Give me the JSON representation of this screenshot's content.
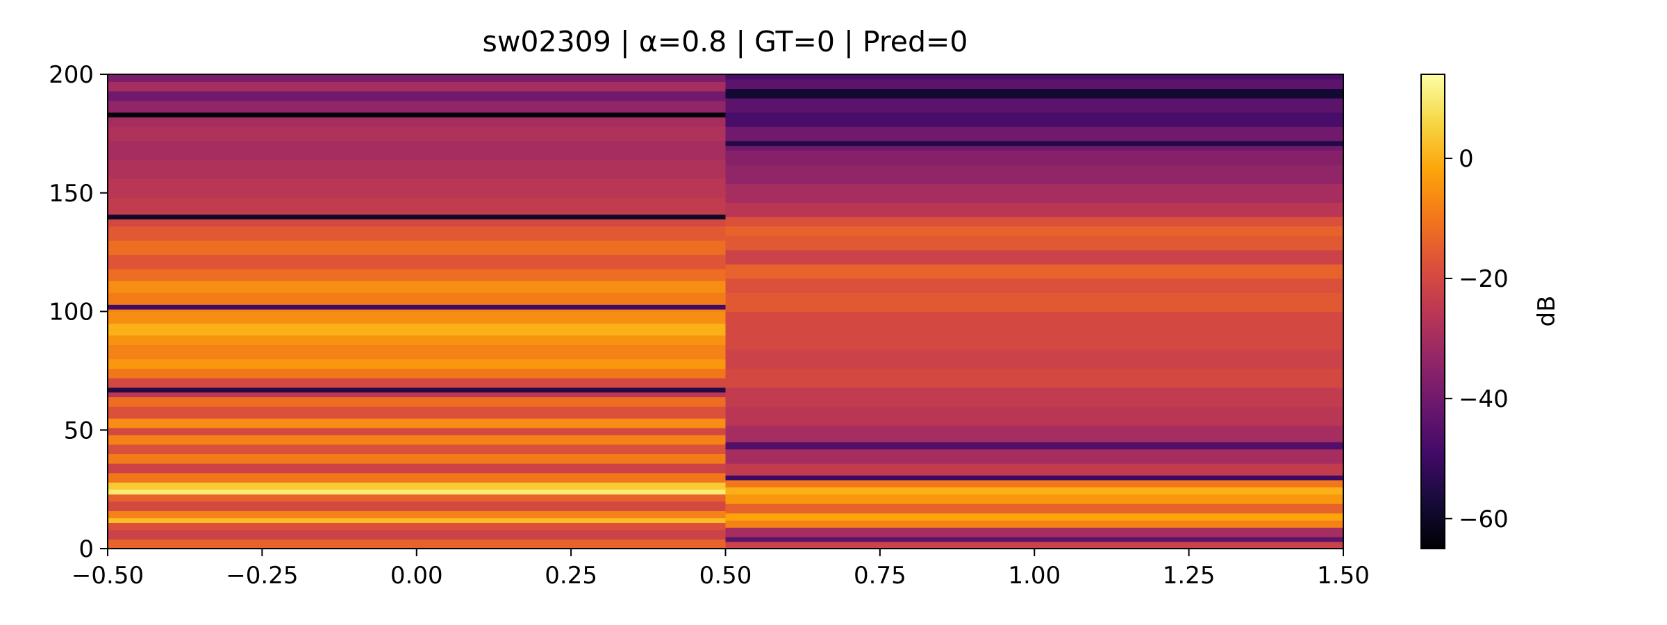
{
  "chart_data": {
    "type": "heatmap",
    "title": "sw02309 | α=0.8 | GT=0 | Pred=0",
    "xlabel": "",
    "ylabel": "",
    "xlim": [
      -0.5,
      1.5
    ],
    "ylim": [
      0,
      200
    ],
    "x_ticks": [
      {
        "value": -0.5,
        "label": "−0.50"
      },
      {
        "value": -0.25,
        "label": "−0.25"
      },
      {
        "value": 0.0,
        "label": "0.00"
      },
      {
        "value": 0.25,
        "label": "0.25"
      },
      {
        "value": 0.5,
        "label": "0.50"
      },
      {
        "value": 0.75,
        "label": "0.75"
      },
      {
        "value": 1.0,
        "label": "1.00"
      },
      {
        "value": 1.25,
        "label": "1.25"
      },
      {
        "value": 1.5,
        "label": "1.50"
      }
    ],
    "y_ticks": [
      {
        "value": 0,
        "label": "0"
      },
      {
        "value": 50,
        "label": "50"
      },
      {
        "value": 100,
        "label": "100"
      },
      {
        "value": 150,
        "label": "150"
      },
      {
        "value": 200,
        "label": "200"
      }
    ],
    "colormap": "inferno",
    "colorbar": {
      "label": "dB",
      "range": [
        -65,
        14
      ],
      "ticks": [
        {
          "value": 0,
          "label": "0"
        },
        {
          "value": -20,
          "label": "−20"
        },
        {
          "value": -40,
          "label": "−40"
        },
        {
          "value": -60,
          "label": "−60"
        }
      ]
    },
    "grid": false,
    "columns": [
      {
        "x": 0,
        "x_range": [
          -0.5,
          0.5
        ],
        "profile_db": [
          {
            "y": 0,
            "db": -14
          },
          {
            "y": 4,
            "db": -22
          },
          {
            "y": 8,
            "db": -18
          },
          {
            "y": 11,
            "db": 2
          },
          {
            "y": 13,
            "db": -8
          },
          {
            "y": 16,
            "db": -20
          },
          {
            "y": 20,
            "db": -14
          },
          {
            "y": 23,
            "db": 10
          },
          {
            "y": 25,
            "db": 4
          },
          {
            "y": 28,
            "db": -10
          },
          {
            "y": 32,
            "db": -22
          },
          {
            "y": 36,
            "db": -9
          },
          {
            "y": 40,
            "db": -18
          },
          {
            "y": 44,
            "db": -8
          },
          {
            "y": 48,
            "db": -20
          },
          {
            "y": 51,
            "db": -6
          },
          {
            "y": 55,
            "db": -18
          },
          {
            "y": 60,
            "db": -12
          },
          {
            "y": 64,
            "db": -26
          },
          {
            "y": 66,
            "db": -55
          },
          {
            "y": 68,
            "db": -20
          },
          {
            "y": 72,
            "db": -10
          },
          {
            "y": 76,
            "db": -4
          },
          {
            "y": 80,
            "db": -8
          },
          {
            "y": 86,
            "db": -5
          },
          {
            "y": 90,
            "db": 0
          },
          {
            "y": 95,
            "db": -6
          },
          {
            "y": 100,
            "db": -8
          },
          {
            "y": 101,
            "db": -50
          },
          {
            "y": 103,
            "db": -9
          },
          {
            "y": 108,
            "db": -6
          },
          {
            "y": 113,
            "db": -12
          },
          {
            "y": 118,
            "db": -17
          },
          {
            "y": 124,
            "db": -12
          },
          {
            "y": 130,
            "db": -16
          },
          {
            "y": 136,
            "db": -20
          },
          {
            "y": 139,
            "db": -60
          },
          {
            "y": 141,
            "db": -24
          },
          {
            "y": 148,
            "db": -26
          },
          {
            "y": 156,
            "db": -28
          },
          {
            "y": 164,
            "db": -30
          },
          {
            "y": 172,
            "db": -28
          },
          {
            "y": 178,
            "db": -30
          },
          {
            "y": 182,
            "db": -64
          },
          {
            "y": 184,
            "db": -34
          },
          {
            "y": 189,
            "db": -40
          },
          {
            "y": 193,
            "db": -30
          },
          {
            "y": 197,
            "db": -38
          },
          {
            "y": 200,
            "db": -30
          }
        ]
      },
      {
        "x": 1,
        "x_range": [
          0.5,
          1.5
        ],
        "profile_db": [
          {
            "y": 0,
            "db": -22
          },
          {
            "y": 3,
            "db": -44
          },
          {
            "y": 5,
            "db": -30
          },
          {
            "y": 9,
            "db": -8
          },
          {
            "y": 12,
            "db": -2
          },
          {
            "y": 15,
            "db": -14
          },
          {
            "y": 19,
            "db": -4
          },
          {
            "y": 23,
            "db": 0
          },
          {
            "y": 26,
            "db": -10
          },
          {
            "y": 29,
            "db": -50
          },
          {
            "y": 31,
            "db": -24
          },
          {
            "y": 36,
            "db": -30
          },
          {
            "y": 42,
            "db": -46
          },
          {
            "y": 45,
            "db": -30
          },
          {
            "y": 52,
            "db": -26
          },
          {
            "y": 60,
            "db": -24
          },
          {
            "y": 68,
            "db": -20
          },
          {
            "y": 76,
            "db": -22
          },
          {
            "y": 84,
            "db": -20
          },
          {
            "y": 92,
            "db": -20
          },
          {
            "y": 100,
            "db": -16
          },
          {
            "y": 108,
            "db": -18
          },
          {
            "y": 114,
            "db": -14
          },
          {
            "y": 120,
            "db": -22
          },
          {
            "y": 126,
            "db": -16
          },
          {
            "y": 132,
            "db": -14
          },
          {
            "y": 136,
            "db": -18
          },
          {
            "y": 140,
            "db": -26
          },
          {
            "y": 146,
            "db": -30
          },
          {
            "y": 154,
            "db": -34
          },
          {
            "y": 162,
            "db": -36
          },
          {
            "y": 168,
            "db": -40
          },
          {
            "y": 170,
            "db": -55
          },
          {
            "y": 172,
            "db": -40
          },
          {
            "y": 178,
            "db": -48
          },
          {
            "y": 184,
            "db": -44
          },
          {
            "y": 190,
            "db": -58
          },
          {
            "y": 194,
            "db": -44
          },
          {
            "y": 198,
            "db": -48
          },
          {
            "y": 200,
            "db": -44
          }
        ]
      }
    ]
  }
}
